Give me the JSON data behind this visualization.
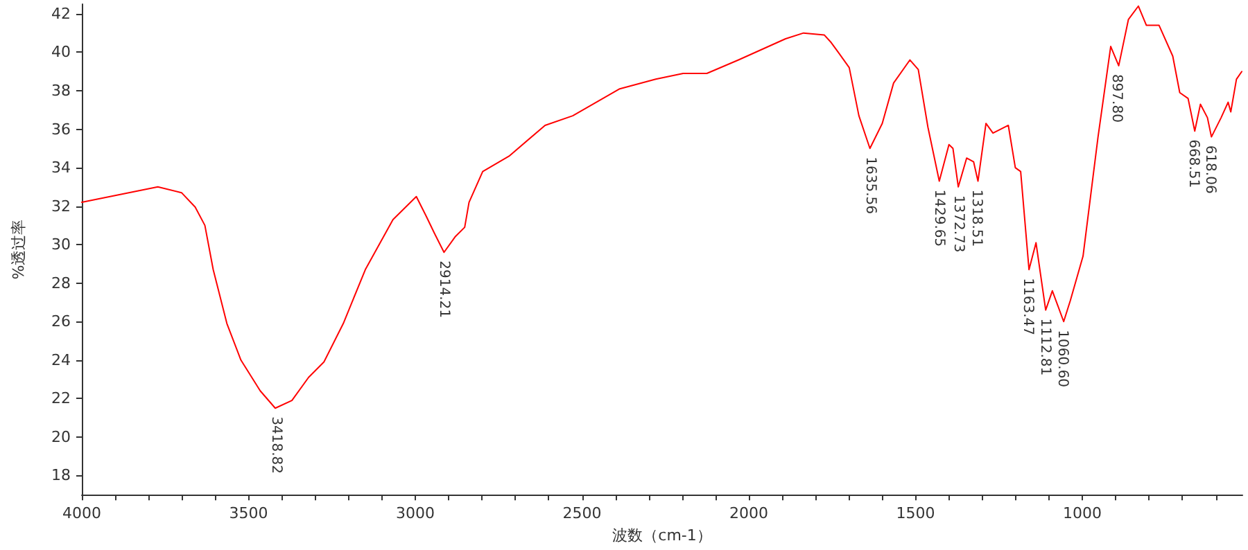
{
  "chart_data": {
    "type": "line",
    "xlabel": "波数（cm-1）",
    "ylabel": "%透过率",
    "xlim": [
      4000,
      520
    ],
    "ylim": [
      17,
      42.5
    ],
    "xticks": [
      4000,
      {
        "value": 3900,
        "label": null
      },
      {
        "value": 3800,
        "label": null
      },
      {
        "value": 3700,
        "label": null
      },
      {
        "value": 3600,
        "label": null
      },
      3500,
      {
        "value": 3400,
        "label": null
      },
      {
        "value": 3300,
        "label": null
      },
      {
        "value": 3200,
        "label": null
      },
      {
        "value": 3100,
        "label": null
      },
      3000,
      {
        "value": 2900,
        "label": null
      },
      {
        "value": 2800,
        "label": null
      },
      {
        "value": 2700,
        "label": null
      },
      {
        "value": 2600,
        "label": null
      },
      2500,
      {
        "value": 2400,
        "label": null
      },
      {
        "value": 2300,
        "label": null
      },
      {
        "value": 2200,
        "label": null
      },
      {
        "value": 2100,
        "label": null
      },
      2000,
      {
        "value": 1900,
        "label": null
      },
      {
        "value": 1800,
        "label": null
      },
      {
        "value": 1700,
        "label": null
      },
      {
        "value": 1600,
        "label": null
      },
      1500,
      {
        "value": 1400,
        "label": null
      },
      {
        "value": 1300,
        "label": null
      },
      {
        "value": 1200,
        "label": null
      },
      {
        "value": 1100,
        "label": null
      },
      1000,
      {
        "value": 900,
        "label": null
      },
      {
        "value": 800,
        "label": null
      },
      {
        "value": 700,
        "label": null
      },
      {
        "value": 600,
        "label": null
      }
    ],
    "yticks": [
      18,
      20,
      22,
      24,
      26,
      28,
      30,
      32,
      34,
      36,
      38,
      40,
      42
    ],
    "grid": false,
    "marker": "none",
    "line_style": "solid",
    "series": [
      {
        "color": "#ff0000",
        "x": [
          4000,
          3772,
          3701,
          3660,
          3631,
          3606,
          3565,
          3523,
          3465,
          3420,
          3370,
          3320,
          3274,
          3216,
          3150,
          3067,
          2997,
          2968,
          2943,
          2914,
          2881,
          2852,
          2839,
          2798,
          2719,
          2611,
          2528,
          2387,
          2279,
          2197,
          2126,
          2031,
          1890,
          1836,
          1774,
          1753,
          1732,
          1699,
          1670,
          1637,
          1600,
          1566,
          1517,
          1492,
          1463,
          1429,
          1400,
          1388,
          1372,
          1347,
          1326,
          1313,
          1289,
          1268,
          1222,
          1201,
          1185,
          1160,
          1139,
          1110,
          1090,
          1056,
          1036,
          998,
          953,
          915,
          891,
          862,
          832,
          808,
          770,
          729,
          708,
          683,
          663,
          646,
          625,
          613,
          584,
          563,
          555,
          538,
          522
        ],
        "values": [
          32.2,
          33.0,
          32.7,
          31.95,
          31.0,
          28.7,
          25.9,
          24.0,
          22.4,
          21.5,
          21.9,
          23.1,
          23.9,
          25.9,
          28.7,
          31.3,
          32.5,
          31.5,
          30.6,
          29.6,
          30.4,
          30.9,
          32.2,
          33.8,
          34.6,
          36.2,
          36.7,
          38.1,
          38.6,
          38.9,
          38.9,
          39.6,
          40.7,
          41.0,
          40.9,
          40.5,
          40.0,
          39.2,
          36.7,
          35.0,
          36.3,
          38.4,
          39.6,
          39.1,
          36.1,
          33.3,
          35.2,
          35.0,
          33.0,
          34.5,
          34.3,
          33.3,
          36.3,
          35.8,
          36.2,
          34.0,
          33.8,
          28.7,
          30.1,
          26.6,
          27.6,
          26.0,
          27.1,
          29.4,
          35.6,
          40.3,
          39.3,
          41.7,
          42.4,
          41.4,
          41.4,
          39.8,
          37.9,
          37.6,
          35.9,
          37.3,
          36.6,
          35.6,
          36.6,
          37.4,
          36.9,
          38.6,
          39.0
        ]
      }
    ],
    "annotations": [
      {
        "text": "3418.82",
        "x": 3418.82,
        "y": 21.5
      },
      {
        "text": "2914.21",
        "x": 2914.21,
        "y": 29.6
      },
      {
        "text": "1635.56",
        "x": 1635.56,
        "y": 35.0
      },
      {
        "text": "1429.65",
        "x": 1429.65,
        "y": 33.3
      },
      {
        "text": "1372.73",
        "x": 1372.73,
        "y": 33.0
      },
      {
        "text": "1318.51",
        "x": 1318.51,
        "y": 33.3
      },
      {
        "text": "1163.47",
        "x": 1163.47,
        "y": 28.7
      },
      {
        "text": "1112.81",
        "x": 1112.81,
        "y": 26.6
      },
      {
        "text": "1060.60",
        "x": 1060.6,
        "y": 26.0
      },
      {
        "text": "897.80",
        "x": 897.8,
        "y": 39.3
      },
      {
        "text": "668.51",
        "x": 668.51,
        "y": 35.9
      },
      {
        "text": "618.06",
        "x": 618.06,
        "y": 35.6
      }
    ]
  }
}
